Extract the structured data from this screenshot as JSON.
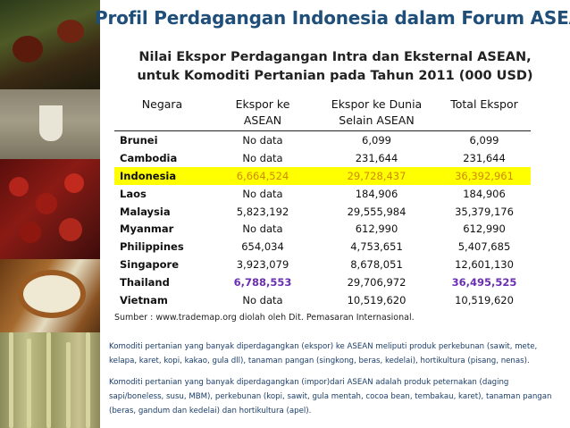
{
  "slide": {
    "title": "Profil Perdagangan Indonesia dalam Forum ASEAN",
    "subtitle_line1": "Nilai Ekspor Perdagangan Intra dan Eksternal ASEAN,",
    "subtitle_line2": "untuk Komoditi Pertanian pada Tahun 2011 (000 USD)",
    "title_color": "#1f4e79",
    "highlight_color": "#ffff00",
    "emphasis_color": "#6b2fb3"
  },
  "table": {
    "headers": {
      "country": "Negara",
      "asean_l1": "Ekspor ke",
      "asean_l2": "ASEAN",
      "world_l1": "Ekspor ke Dunia",
      "world_l2": "Selain ASEAN",
      "total": "Total Ekspor"
    },
    "rows": [
      {
        "country": "Brunei",
        "asean": "No data",
        "world": "6,099",
        "total": "6,099"
      },
      {
        "country": "Cambodia",
        "asean": "No data",
        "world": "231,644",
        "total": "231,644"
      },
      {
        "country": "Indonesia",
        "asean": "6,664,524",
        "world": "29,728,437",
        "total": "36,392,961"
      },
      {
        "country": "Laos",
        "asean": "No data",
        "world": "184,906",
        "total": "184,906"
      },
      {
        "country": "Malaysia",
        "asean": "5,823,192",
        "world": "29,555,984",
        "total": "35,379,176"
      },
      {
        "country": "Myanmar",
        "asean": "No data",
        "world": "612,990",
        "total": "612,990"
      },
      {
        "country": "Philippines",
        "asean": "654,034",
        "world": "4,753,651",
        "total": "5,407,685"
      },
      {
        "country": "Singapore",
        "asean": "3,923,079",
        "world": "8,678,051",
        "total": "12,601,130"
      },
      {
        "country": "Thailand",
        "asean": "6,788,553",
        "world": "29,706,972",
        "total": "36,495,525"
      },
      {
        "country": "Vietnam",
        "asean": "No data",
        "world": "10,519,620",
        "total": "10,519,620"
      }
    ]
  },
  "source": "Sumber : www.trademap.org diolah oleh Dit. Pemasaran Internasional.",
  "notes": {
    "export": "Komoditi pertanian yang banyak diperdagangkan (ekspor) ke ASEAN meliputi produk perkebunan (sawit, mete, kelapa, karet, kopi, kakao, gula dll), tanaman pangan (singkong, beras, kedelai), hortikultura (pisang, nenas).",
    "import": "Komoditi pertanian yang banyak diperdagangkan (impor)dari ASEAN adalah produk peternakan (daging sapi/boneless, susu, MBM), perkebunan (kopi, sawit, gula mentah, cocoa bean, tembakau, karet), tanaman pangan (beras, gandum dan kedelai) dan hortikultura (apel)."
  }
}
